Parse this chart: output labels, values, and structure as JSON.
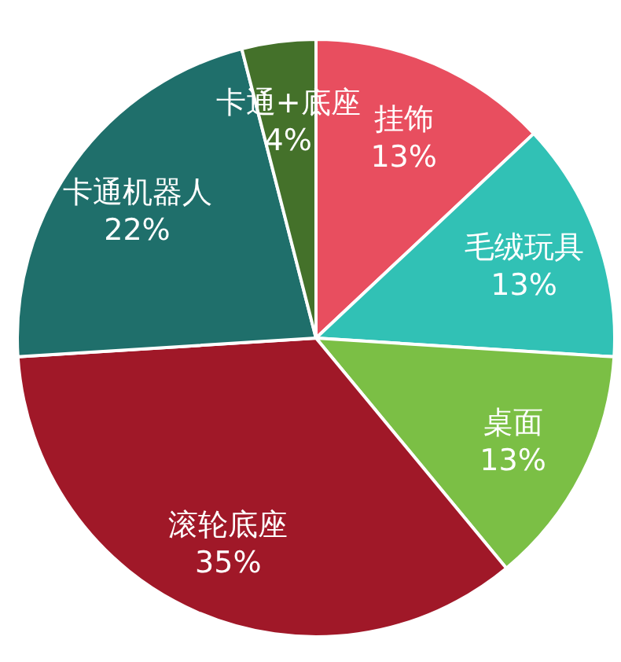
{
  "chart_data": {
    "type": "pie",
    "categories": [
      "挂饰",
      "毛绒玩具",
      "桌面",
      "滚轮底座",
      "卡通机器人",
      "卡通+底座"
    ],
    "values": [
      13,
      13,
      13,
      35,
      22,
      4
    ],
    "colors": [
      "#e84e5f",
      "#31c1b5",
      "#7bbf45",
      "#a01828",
      "#1f6f6b",
      "#44712a"
    ],
    "value_labels": [
      "13%",
      "13%",
      "13%",
      "35%",
      "22%",
      "4%"
    ]
  }
}
